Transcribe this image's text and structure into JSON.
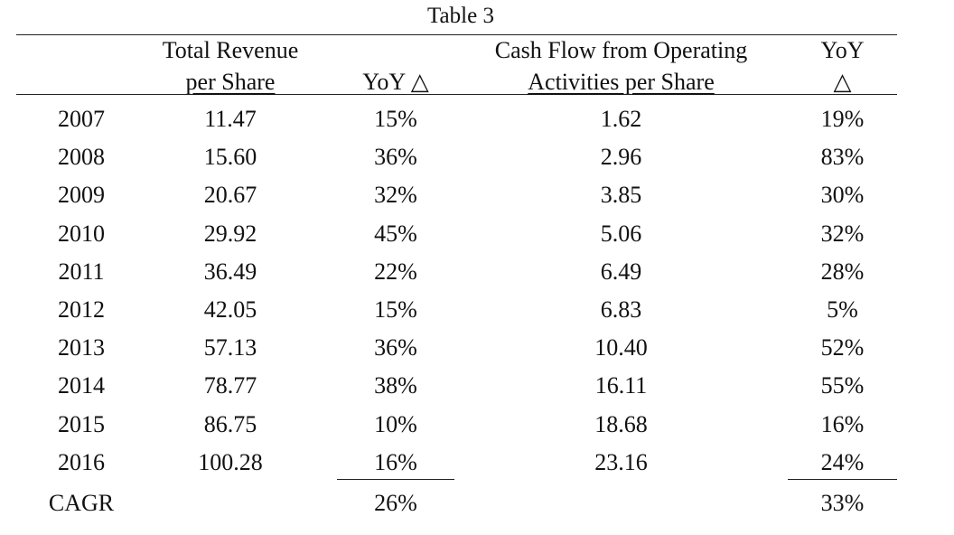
{
  "table": {
    "title": "Table 3",
    "headers": {
      "revenue_line1": "Total Revenue",
      "revenue_line2": "per Share",
      "revenue_yoy": "YoY △",
      "cashflow_line1": "Cash Flow from Operating",
      "cashflow_line2": "Activities per Share",
      "cashflow_yoy_line1": "YoY",
      "cashflow_yoy_line2": "△"
    },
    "rows": [
      {
        "year": "2007",
        "revenue": "11.47",
        "revenue_yoy": "15%",
        "cashflow": "1.62",
        "cashflow_yoy": "19%"
      },
      {
        "year": "2008",
        "revenue": "15.60",
        "revenue_yoy": "36%",
        "cashflow": "2.96",
        "cashflow_yoy": "83%"
      },
      {
        "year": "2009",
        "revenue": "20.67",
        "revenue_yoy": "32%",
        "cashflow": "3.85",
        "cashflow_yoy": "30%"
      },
      {
        "year": "2010",
        "revenue": "29.92",
        "revenue_yoy": "45%",
        "cashflow": "5.06",
        "cashflow_yoy": "32%"
      },
      {
        "year": "2011",
        "revenue": "36.49",
        "revenue_yoy": "22%",
        "cashflow": "6.49",
        "cashflow_yoy": "28%"
      },
      {
        "year": "2012",
        "revenue": "42.05",
        "revenue_yoy": "15%",
        "cashflow": "6.83",
        "cashflow_yoy": "5%"
      },
      {
        "year": "2013",
        "revenue": "57.13",
        "revenue_yoy": "36%",
        "cashflow": "10.40",
        "cashflow_yoy": "52%"
      },
      {
        "year": "2014",
        "revenue": "78.77",
        "revenue_yoy": "38%",
        "cashflow": "16.11",
        "cashflow_yoy": "55%"
      },
      {
        "year": "2015",
        "revenue": "86.75",
        "revenue_yoy": "10%",
        "cashflow": "18.68",
        "cashflow_yoy": "16%"
      },
      {
        "year": "2016",
        "revenue": "100.28",
        "revenue_yoy": "16%",
        "cashflow": "23.16",
        "cashflow_yoy": "24%"
      }
    ],
    "cagr": {
      "label": "CAGR",
      "revenue_yoy": "26%",
      "cashflow_yoy": "33%"
    }
  }
}
